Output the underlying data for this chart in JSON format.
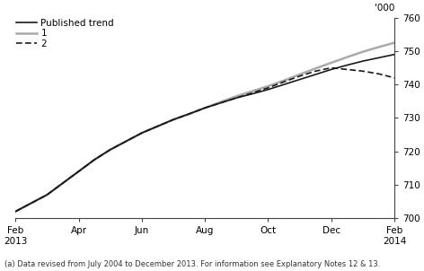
{
  "ylabel_top": "'000",
  "footnote": "(a) Data revised from July 2004 to December 2013. For information see Explanatory Notes 12 & 13.",
  "ylim": [
    700,
    760
  ],
  "yticks": [
    700,
    710,
    720,
    730,
    740,
    750,
    760
  ],
  "xtick_labels": [
    "Feb\n2013",
    "Apr",
    "Jun",
    "Aug",
    "Oct",
    "Dec",
    "Feb\n2014"
  ],
  "xtick_positions": [
    0,
    2,
    4,
    6,
    8,
    10,
    12
  ],
  "legend_labels": [
    "Published trend",
    "1",
    "2"
  ],
  "published_trend": {
    "x": [
      0,
      0.5,
      1,
      1.5,
      2,
      2.5,
      3,
      3.5,
      4,
      4.5,
      5,
      5.5,
      6,
      6.5,
      7,
      7.5,
      8,
      8.5,
      9,
      9.5,
      10,
      10.5,
      11,
      11.5,
      12
    ],
    "y": [
      702.0,
      704.5,
      707.0,
      710.5,
      714.0,
      717.5,
      720.5,
      723.0,
      725.5,
      727.5,
      729.5,
      731.2,
      733.0,
      734.5,
      736.0,
      737.2,
      738.5,
      740.0,
      741.5,
      743.0,
      744.5,
      745.8,
      747.0,
      748.0,
      749.0
    ],
    "color": "#1a1a1a",
    "linewidth": 1.2
  },
  "scenario1": {
    "x": [
      0,
      0.5,
      1,
      1.5,
      2,
      2.5,
      3,
      3.5,
      4,
      4.5,
      5,
      5.5,
      6,
      6.5,
      7,
      7.5,
      8,
      8.5,
      9,
      9.5,
      10,
      10.5,
      11,
      11.5,
      12
    ],
    "y": [
      702.0,
      704.5,
      707.0,
      710.5,
      714.0,
      717.5,
      720.5,
      723.0,
      725.5,
      727.5,
      729.5,
      731.2,
      733.0,
      734.8,
      736.5,
      738.0,
      739.5,
      741.2,
      743.0,
      744.8,
      746.5,
      748.2,
      749.8,
      751.2,
      752.5
    ],
    "color": "#aaaaaa",
    "linewidth": 1.8
  },
  "scenario2": {
    "x": [
      0,
      0.5,
      1,
      1.5,
      2,
      2.5,
      3,
      3.5,
      4,
      4.5,
      5,
      5.5,
      6,
      6.5,
      7,
      7.5,
      8,
      8.5,
      9,
      9.5,
      10,
      10.5,
      11,
      11.5,
      12
    ],
    "y": [
      702.0,
      704.5,
      707.0,
      710.5,
      714.0,
      717.5,
      720.5,
      723.0,
      725.5,
      727.5,
      729.5,
      731.2,
      733.0,
      734.5,
      736.0,
      737.5,
      739.0,
      740.8,
      742.5,
      744.0,
      745.0,
      744.5,
      744.0,
      743.2,
      742.0
    ],
    "color": "#1a1a1a",
    "linewidth": 1.2
  },
  "background_color": "#ffffff",
  "xmin": 0,
  "xmax": 12,
  "legend_fontsize": 7.5,
  "tick_fontsize": 7.5
}
